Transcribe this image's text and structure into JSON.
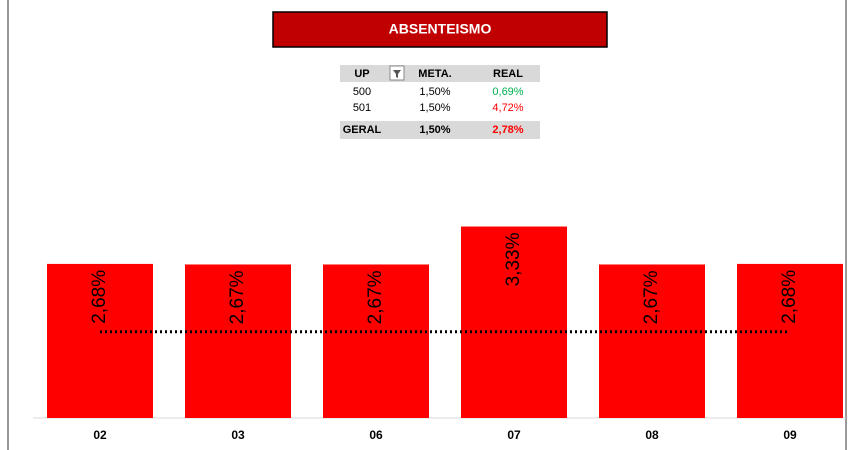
{
  "chart_data": {
    "type": "bar",
    "title": "ABSENTEISMO",
    "categories": [
      "02",
      "03",
      "06",
      "07",
      "08",
      "09"
    ],
    "values": [
      2.68,
      2.67,
      2.67,
      3.33,
      2.67,
      2.68
    ],
    "value_labels": [
      "2,68%",
      "2,67%",
      "2,67%",
      "3,33%",
      "2,67%",
      "2,68%"
    ],
    "color": "#ff0000",
    "target": 1.5,
    "ylim": [
      0,
      4
    ]
  },
  "table": {
    "header": [
      "UP",
      "META.",
      "REAL"
    ],
    "rows": [
      [
        "500",
        "1,50%",
        "0,69%"
      ],
      [
        "501",
        "1,50%",
        "4,72%"
      ],
      [
        "GERAL",
        "1,50%",
        "2,78%"
      ]
    ],
    "real_colors": [
      "#00b050",
      "#ff0000",
      "#ff0000"
    ]
  }
}
